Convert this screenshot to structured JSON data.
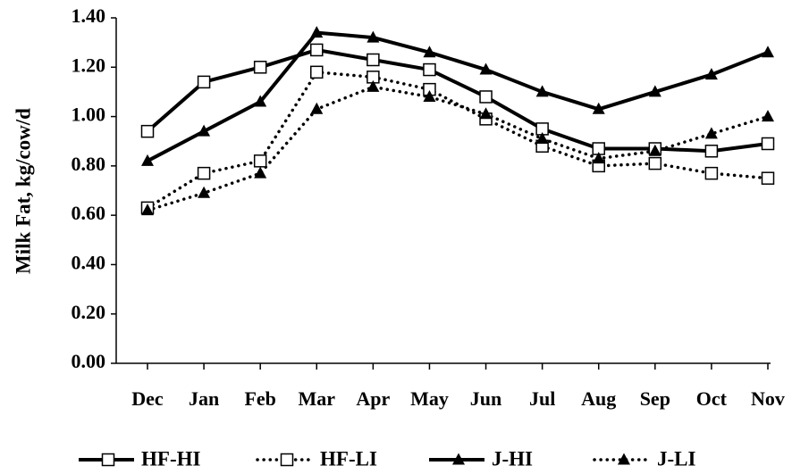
{
  "chart_data": {
    "type": "line",
    "y_label": "Milk Fat, kg/cow/d",
    "categories": [
      "Dec",
      "Jan",
      "Feb",
      "Mar",
      "Apr",
      "May",
      "Jun",
      "Jul",
      "Aug",
      "Sep",
      "Oct",
      "Nov"
    ],
    "series": [
      {
        "name": "HF-HI",
        "color": "#000000",
        "marker": "square",
        "line_style": "solid",
        "values": [
          0.94,
          1.14,
          1.2,
          1.27,
          1.23,
          1.19,
          1.08,
          0.95,
          0.87,
          0.87,
          0.86,
          0.89
        ]
      },
      {
        "name": "HF-LI",
        "color": "#000000",
        "marker": "square",
        "line_style": "dotted",
        "values": [
          0.63,
          0.77,
          0.82,
          1.18,
          1.16,
          1.11,
          0.99,
          0.88,
          0.8,
          0.81,
          0.77,
          0.75
        ]
      },
      {
        "name": "J-HI",
        "color": "#000000",
        "marker": "triangle",
        "line_style": "solid",
        "values": [
          0.82,
          0.94,
          1.06,
          1.34,
          1.32,
          1.26,
          1.19,
          1.1,
          1.03,
          1.1,
          1.17,
          1.26
        ]
      },
      {
        "name": "J-LI",
        "color": "#000000",
        "marker": "triangle",
        "line_style": "dotted",
        "values": [
          0.62,
          0.69,
          0.77,
          1.03,
          1.12,
          1.08,
          1.01,
          0.91,
          0.83,
          0.86,
          0.93,
          1.0
        ]
      }
    ],
    "ylim": [
      0,
      1.4
    ],
    "yticks": [
      {
        "value": 0,
        "label": "0.00"
      },
      {
        "value": 0.2,
        "label": "0.20"
      },
      {
        "value": 0.4,
        "label": "0.40"
      },
      {
        "value": 0.6,
        "label": "0.60"
      },
      {
        "value": 0.8,
        "label": "0.80"
      },
      {
        "value": 1.0,
        "label": "1.00"
      },
      {
        "value": 1.2,
        "label": "1.20"
      },
      {
        "value": 1.4,
        "label": "1.40"
      }
    ],
    "grid": false,
    "legend": "bottom"
  }
}
